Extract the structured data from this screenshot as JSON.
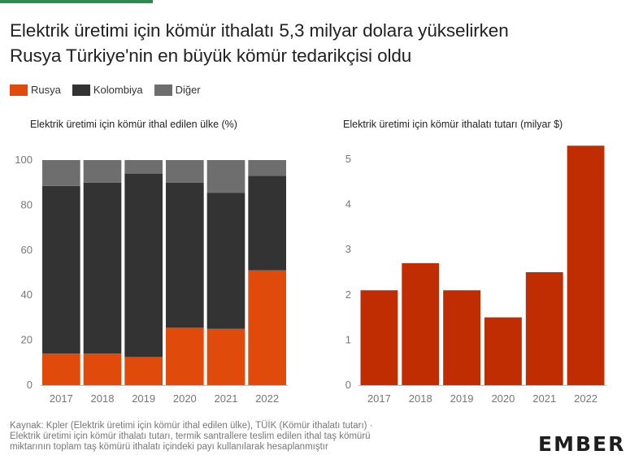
{
  "title": {
    "line1": "Elektrik üretimi için kömür ithalatı 5,3 milyar dolara yükselirken",
    "line2": "Rusya Türkiye'nin en büyük kömür tedarikçisi oldu"
  },
  "legend": [
    {
      "label": "Rusya",
      "color": "#e04b0b"
    },
    {
      "label": "Kolombiya",
      "color": "#333333"
    },
    {
      "label": "Diğer",
      "color": "#6e6e6e"
    }
  ],
  "source": {
    "line1": "Kaynak: Kpler (Elektrik üretimi için kömür ithal edilen ülke), TÜİK (Kömür ithalatı tutarı) ·",
    "line2": "Elektrik üretimi için kömür ithalatı tutarı, termik santrallere teslim edilen ithal taş kömürü",
    "line3": "miktarının toplam taş kömürü ithalatı içindeki payı kullanılarak hesaplanmıştır"
  },
  "logo": "EMBER",
  "colors": {
    "accent_bar": "#2f8a52",
    "bar_right": "#c12d02",
    "axis": "#bdbdbd",
    "tick_text": "#777777"
  },
  "chart_data": [
    {
      "type": "bar",
      "stacked": true,
      "title": "Elektrik üretimi için kömür ithal edilen ülke (%)",
      "categories": [
        "2017",
        "2018",
        "2019",
        "2020",
        "2021",
        "2022"
      ],
      "series": [
        {
          "name": "Rusya",
          "color": "#e04b0b",
          "values": [
            14,
            14,
            12.5,
            25.5,
            25,
            51
          ]
        },
        {
          "name": "Kolombiya",
          "color": "#333333",
          "values": [
            74.5,
            76,
            81.5,
            64.5,
            60.5,
            42
          ]
        },
        {
          "name": "Diğer",
          "color": "#6e6e6e",
          "values": [
            11.5,
            10,
            6,
            10,
            14.5,
            7
          ]
        }
      ],
      "ylim": [
        0,
        100
      ],
      "yticks": [
        "0",
        "20",
        "40",
        "60",
        "80",
        "100"
      ],
      "grid": false
    },
    {
      "type": "bar",
      "title": "Elektrik üretimi için kömür ithalatı tutarı (milyar $)",
      "categories": [
        "2017",
        "2018",
        "2019",
        "2020",
        "2021",
        "2022"
      ],
      "values": [
        2.1,
        2.7,
        2.1,
        1.5,
        2.5,
        5.3
      ],
      "ylim": [
        0,
        5.3
      ],
      "yticks": [
        "0",
        "1",
        "2",
        "3",
        "4",
        "5"
      ],
      "grid": false
    }
  ]
}
